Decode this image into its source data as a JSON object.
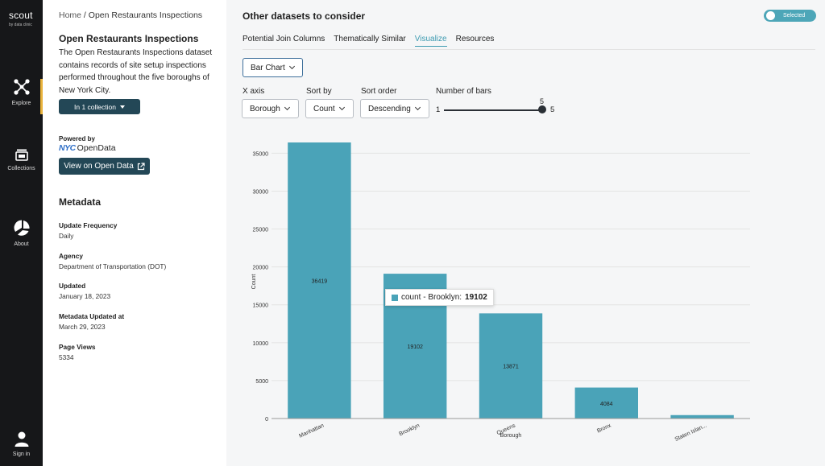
{
  "brand": {
    "name": "scout",
    "subtitle": "by data clinic"
  },
  "nav": [
    {
      "label": "Explore",
      "icon": "explore-icon"
    },
    {
      "label": "Collections",
      "icon": "collections-icon"
    },
    {
      "label": "About",
      "icon": "about-icon"
    },
    {
      "label": "Sign in",
      "icon": "user-icon"
    }
  ],
  "breadcrumb": {
    "home": "Home",
    "separator": " / ",
    "current": "Open Restaurants Inspections"
  },
  "dataset": {
    "title": "Open Restaurants Inspections",
    "description": "The Open Restaurants Inspections dataset contains records of site setup inspections performed throughout the five boroughs of New York City.",
    "collection_button": "In 1 collection",
    "powered_by": "Powered by",
    "provider_mark": "NYC",
    "provider_name": "OpenData",
    "open_data_button": "View on Open Data"
  },
  "metadata": {
    "heading": "Metadata",
    "items": [
      {
        "label": "Update Frequency",
        "value": "Daily"
      },
      {
        "label": "Agency",
        "value": "Department of Transportation (DOT)"
      },
      {
        "label": "Updated",
        "value": "January 18, 2023"
      },
      {
        "label": "Metadata Updated at",
        "value": "March 29, 2023"
      },
      {
        "label": "Page Views",
        "value": "5334"
      }
    ]
  },
  "main": {
    "title": "Other datasets to consider",
    "toggle_label": "Selected",
    "tabs": [
      "Potential Join Columns",
      "Thematically Similar",
      "Visualize",
      "Resources"
    ],
    "active_tab": 2
  },
  "controls": {
    "chart_type": "Bar Chart",
    "x_axis_label": "X axis",
    "x_axis_value": "Borough",
    "sort_by_label": "Sort by",
    "sort_by_value": "Count",
    "sort_order_label": "Sort order",
    "sort_order_value": "Descending",
    "bars_label": "Number of bars",
    "bars_min": "1",
    "bars_max": "5",
    "bars_value": "5"
  },
  "tooltip": {
    "label": "count - Brooklyn:",
    "value": "19102"
  },
  "colors": {
    "bar": "#4aa3b8",
    "accent": "#3e9bb1",
    "dark_button": "#234756",
    "rail": "#161719",
    "nav_active": "#e9b33c"
  },
  "chart_data": {
    "type": "bar",
    "categories": [
      "Manhattan",
      "Brooklyn",
      "Queens",
      "Bronx",
      "Staten Islan..."
    ],
    "values": [
      36419,
      19102,
      13871,
      4084,
      450
    ],
    "data_labels": [
      "36419",
      "19102",
      "13871",
      "4084",
      ""
    ],
    "xlabel": "Borough",
    "ylabel": "Count",
    "ylim": [
      0,
      36419
    ],
    "yticks": [
      0,
      5000,
      10000,
      15000,
      20000,
      25000,
      30000,
      35000
    ],
    "grid": true
  }
}
